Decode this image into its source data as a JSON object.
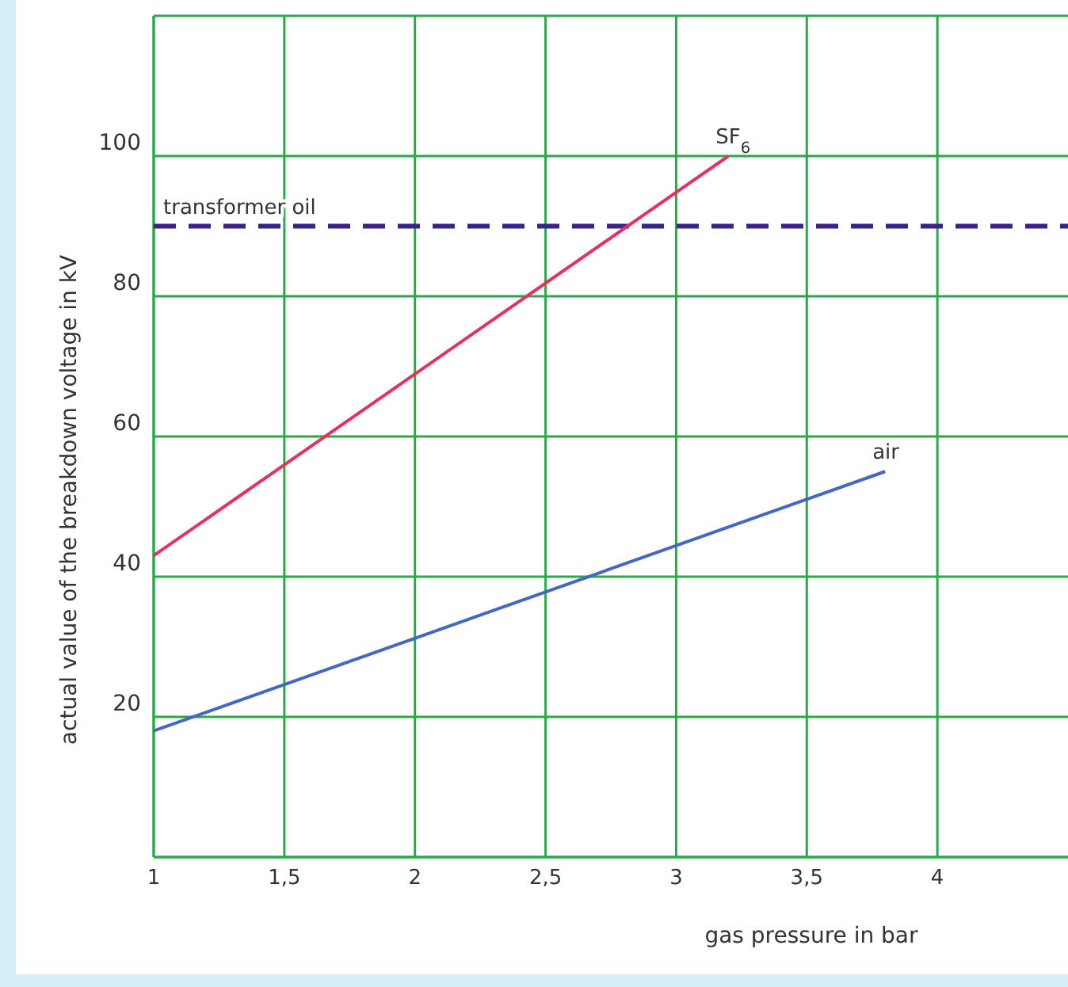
{
  "chart_data": {
    "type": "line",
    "xlabel": "gas pressure in bar",
    "ylabel": "actual value of the breakdown voltage in kV",
    "xlim": [
      1,
      4.5
    ],
    "ylim": [
      0,
      120
    ],
    "xticks": [
      1,
      {
        "value": 1.5,
        "label": "1,5"
      },
      2,
      {
        "value": 2.5,
        "label": "2,5"
      },
      3,
      {
        "value": 3.5,
        "label": "3,5"
      },
      4
    ],
    "yticks": [
      {
        "value": 0,
        "label": null
      },
      20,
      40,
      60,
      80,
      100,
      {
        "value": 120,
        "label": null
      }
    ],
    "grid": true,
    "marker": "none",
    "line_style": "solid",
    "series": [
      {
        "name": "SF$_{6}$",
        "color": "#e0335e",
        "x": [
          1,
          3.2
        ],
        "values": [
          43,
          100
        ]
      },
      {
        "name": "air",
        "color": "#4468c0",
        "x": [
          1,
          3.8
        ],
        "values": [
          18,
          55
        ]
      }
    ],
    "ref_lines": [
      {
        "axis": "y",
        "value": 90,
        "label": "transformer oil",
        "color": "#3b2388",
        "line_style": "dashed"
      }
    ]
  }
}
